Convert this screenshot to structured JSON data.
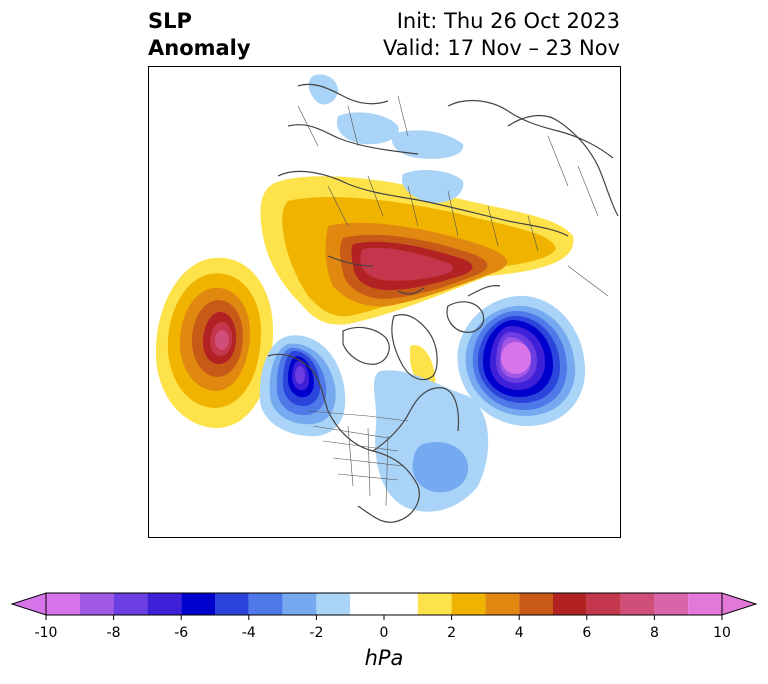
{
  "title": {
    "left_line1": "SLP",
    "left_line2": "Anomaly",
    "init": "Init: Thu 26 Oct 2023",
    "valid": "Valid: 17 Nov – 23 Nov"
  },
  "colorbar": {
    "unit": "hPa",
    "levels": [
      -10,
      -9,
      -8,
      -7,
      -6,
      -5,
      -4,
      -3,
      -2,
      -1,
      1,
      2,
      3,
      4,
      5,
      6,
      7,
      8,
      9,
      10
    ],
    "tick_labels": [
      "-10",
      "-8",
      "-6",
      "-4",
      "-2",
      "0",
      "2",
      "4",
      "6",
      "8",
      "10"
    ],
    "colors": [
      "#d774ea",
      "#a257e4",
      "#6c3de0",
      "#3f20d9",
      "#0000cc",
      "#2a44dc",
      "#4f78e8",
      "#76aaf0",
      "#a9d4f7",
      "#ffffff",
      "#fde24a",
      "#f0b400",
      "#e08810",
      "#c85a18",
      "#b22222",
      "#c4364b",
      "#d04f78",
      "#d865a8",
      "#e478d8"
    ],
    "extend": "both"
  },
  "map": {
    "projection": "north-polar-stereographic",
    "anomaly_centers": [
      {
        "name": "Gulf of Alaska high",
        "sign": "positive",
        "peak_hPa": 8
      },
      {
        "name": "Siberian-Arctic high",
        "sign": "positive",
        "peak_hPa": 6
      },
      {
        "name": "Western Canada low",
        "sign": "negative",
        "peak_hPa": -7
      },
      {
        "name": "North Atlantic low",
        "sign": "negative",
        "peak_hPa": -10
      },
      {
        "name": "Eastern US low",
        "sign": "negative",
        "peak_hPa": -3
      }
    ]
  }
}
